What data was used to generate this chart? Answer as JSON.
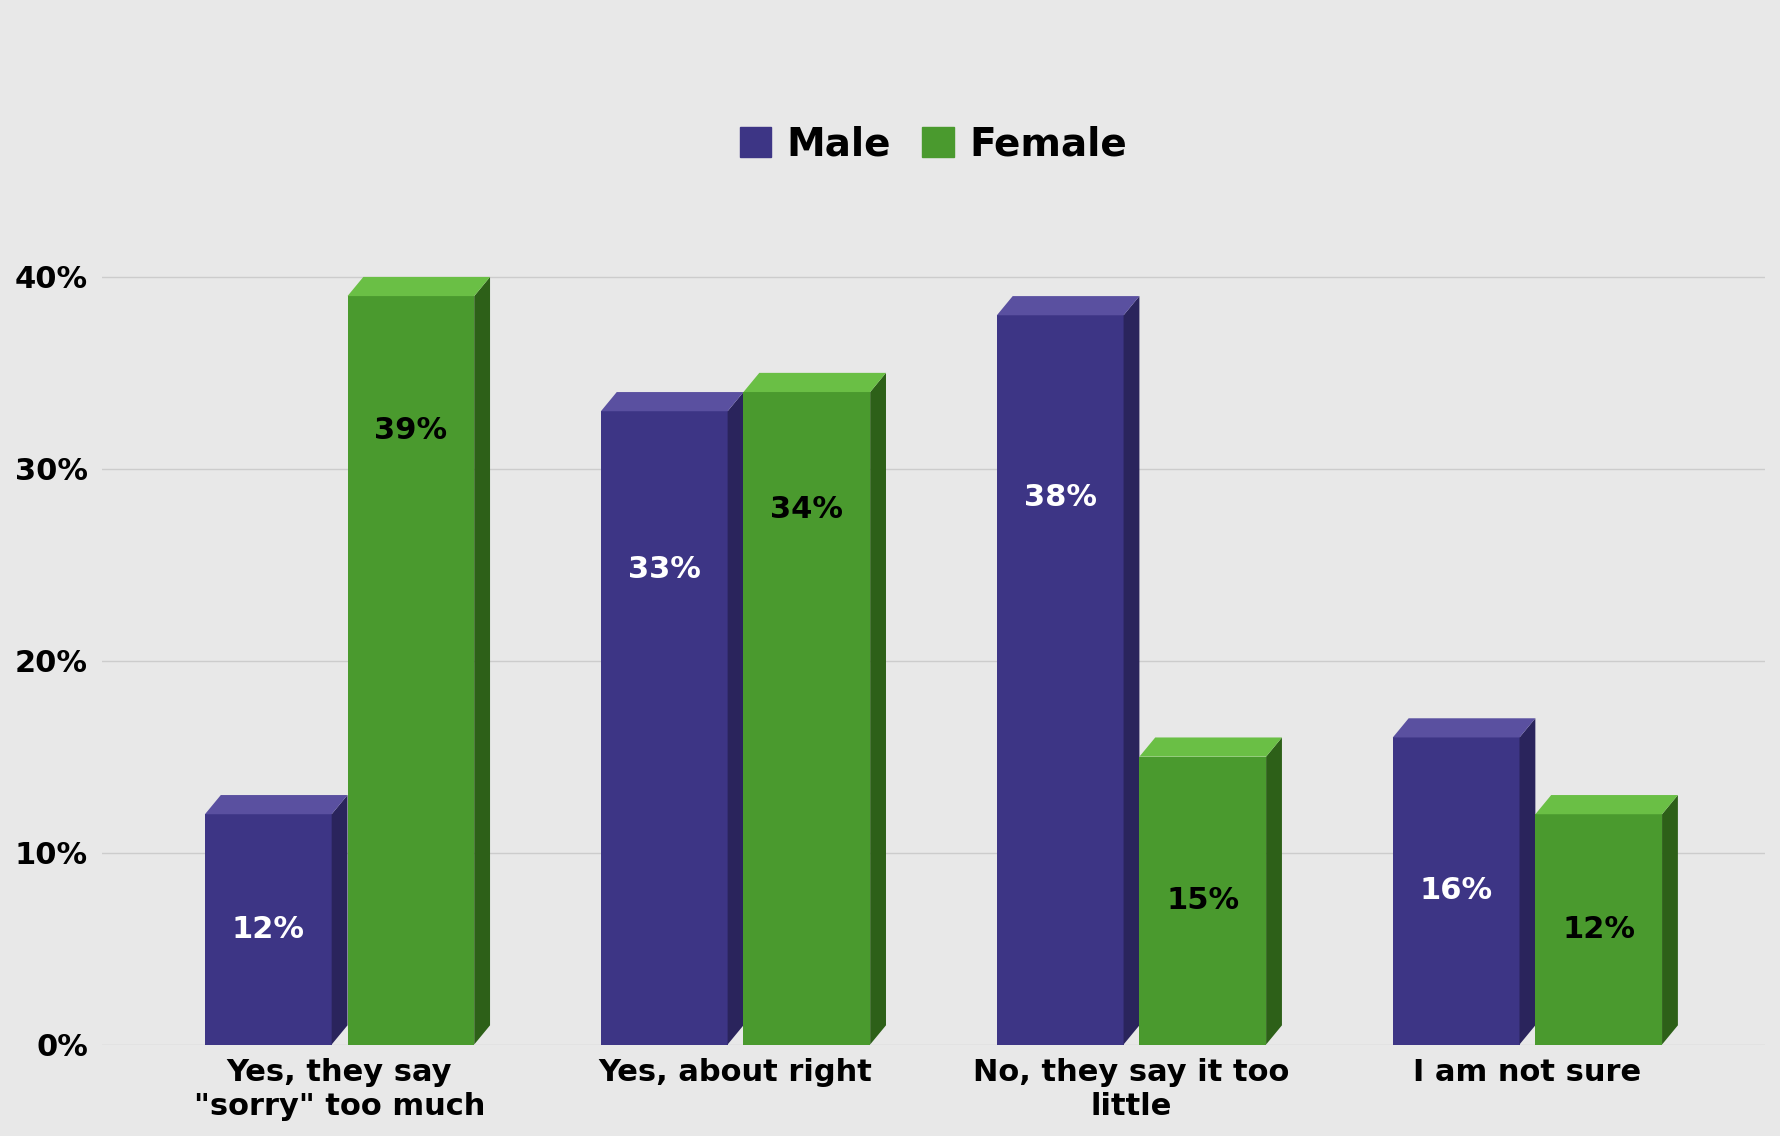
{
  "categories": [
    "Yes, they say\n\"sorry\" too much",
    "Yes, about right",
    "No, they say it too\nlittle",
    "I am not sure"
  ],
  "male_values": [
    12,
    33,
    38,
    16
  ],
  "female_values": [
    39,
    34,
    15,
    12
  ],
  "male_color": "#3d3585",
  "male_side_color": "#2a245c",
  "male_top_color": "#5a50a0",
  "female_color": "#4a9a2e",
  "female_side_color": "#2d6018",
  "female_top_color": "#6abf45",
  "background_color": "#e8e8e8",
  "legend_male": "Male",
  "legend_female": "Female",
  "yticks": [
    0,
    10,
    20,
    30,
    40
  ],
  "ytick_labels": [
    "0%",
    "10%",
    "20%",
    "30%",
    "40%"
  ],
  "ylim": [
    0,
    44
  ],
  "bar_width": 0.32,
  "depth": 0.06,
  "label_fontsize": 22,
  "tick_fontsize": 22,
  "legend_fontsize": 28,
  "gridcolor": "#cccccc",
  "label_threshold": 20
}
